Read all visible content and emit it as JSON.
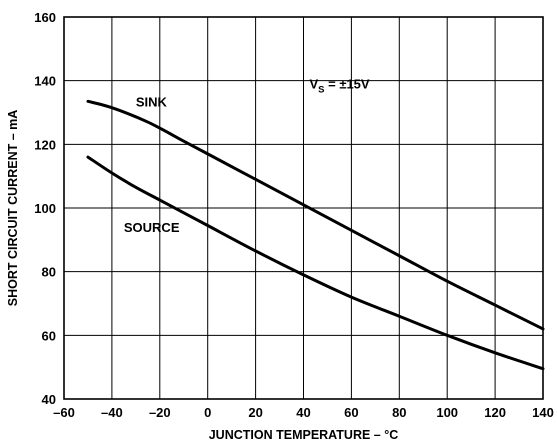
{
  "chart_data": {
    "type": "line",
    "title": "",
    "xlabel": "JUNCTION TEMPERATURE – °C",
    "ylabel": "SHORT CIRCUIT CURRENT – mA",
    "xlim": [
      -60,
      140
    ],
    "ylim": [
      40,
      160
    ],
    "x_ticks": [
      -60,
      -40,
      -20,
      0,
      20,
      40,
      60,
      80,
      100,
      120,
      140
    ],
    "y_ticks": [
      40,
      60,
      80,
      100,
      120,
      140,
      160
    ],
    "x_tick_labels": [
      "–60",
      "–40",
      "–20",
      "0",
      "20",
      "40",
      "60",
      "80",
      "100",
      "120",
      "140"
    ],
    "y_tick_labels": [
      "40",
      "60",
      "80",
      "100",
      "120",
      "140",
      "160"
    ],
    "grid": true,
    "annotation": {
      "main": "V",
      "subscript": "S",
      "rest": " = ±15V"
    },
    "series": [
      {
        "name": "SINK",
        "x": [
          -50,
          -40,
          -25,
          -10,
          0,
          20,
          40,
          60,
          80,
          100,
          120,
          140
        ],
        "y": [
          133.5,
          131.5,
          127,
          121,
          117,
          109,
          101,
          93,
          85,
          77,
          69.5,
          62
        ]
      },
      {
        "name": "SOURCE",
        "x": [
          -50,
          -40,
          -30,
          -20,
          -10,
          0,
          20,
          40,
          60,
          80,
          100,
          120,
          140
        ],
        "y": [
          116,
          111,
          106.5,
          102.5,
          98.5,
          94.5,
          86.5,
          79,
          72,
          66,
          60,
          54.5,
          49.5
        ]
      }
    ]
  }
}
